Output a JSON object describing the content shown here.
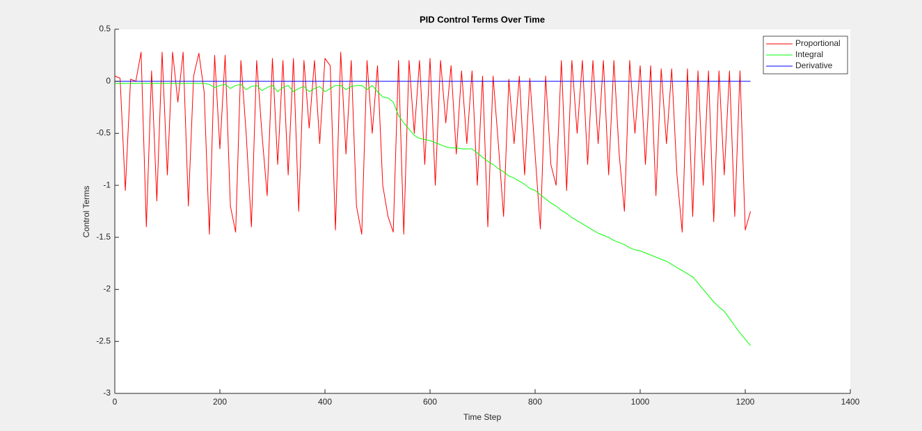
{
  "chart_data": {
    "type": "line",
    "title": "PID Control Terms Over Time",
    "xlabel": "Time Step",
    "ylabel": "Control Terms",
    "x": [
      0,
      10,
      20,
      30,
      40,
      50,
      60,
      70,
      80,
      90,
      100,
      110,
      120,
      130,
      140,
      150,
      160,
      170,
      180,
      190,
      200,
      210,
      220,
      230,
      240,
      250,
      260,
      270,
      280,
      290,
      300,
      310,
      320,
      330,
      340,
      350,
      360,
      370,
      380,
      390,
      400,
      410,
      420,
      430,
      440,
      450,
      460,
      470,
      480,
      490,
      500,
      510,
      520,
      530,
      540,
      550,
      560,
      570,
      580,
      590,
      600,
      610,
      620,
      630,
      640,
      650,
      660,
      670,
      680,
      690,
      700,
      710,
      720,
      730,
      740,
      750,
      760,
      770,
      780,
      790,
      800,
      810,
      820,
      830,
      840,
      850,
      860,
      870,
      880,
      890,
      900,
      910,
      920,
      930,
      940,
      950,
      960,
      970,
      980,
      990,
      1000,
      1010,
      1020,
      1030,
      1040,
      1050,
      1060,
      1070,
      1080,
      1090,
      1100,
      1110,
      1120,
      1130,
      1140,
      1150,
      1160,
      1170,
      1180,
      1190,
      1200,
      1210
    ],
    "series": [
      {
        "name": "Proportional",
        "color": "#ff0000",
        "values": [
          0.05,
          0.03,
          -1.05,
          0.02,
          0.0,
          0.28,
          -1.4,
          0.1,
          -1.15,
          0.28,
          -0.9,
          0.28,
          -0.2,
          0.28,
          -1.2,
          0.05,
          0.27,
          -0.1,
          -1.47,
          0.25,
          -0.65,
          0.25,
          -1.2,
          -1.45,
          0.2,
          -0.5,
          -1.4,
          0.2,
          -0.5,
          -1.1,
          0.22,
          -0.8,
          0.2,
          -0.9,
          0.22,
          -1.25,
          0.2,
          -0.45,
          0.2,
          -0.6,
          0.22,
          0.15,
          -1.43,
          0.28,
          -0.7,
          0.2,
          -1.2,
          -1.47,
          0.2,
          -0.5,
          0.15,
          -1.0,
          -1.3,
          -1.45,
          0.2,
          -1.47,
          0.2,
          -0.5,
          0.2,
          -0.8,
          0.22,
          -1.0,
          0.2,
          -0.4,
          0.15,
          -0.7,
          0.1,
          -0.6,
          0.1,
          -1.0,
          0.05,
          -1.4,
          0.05,
          -0.6,
          -1.3,
          0.02,
          -0.6,
          0.05,
          -0.9,
          0.03,
          -0.7,
          -1.42,
          0.05,
          -0.8,
          -1.0,
          0.2,
          -1.05,
          0.2,
          -0.5,
          0.2,
          -0.8,
          0.2,
          -0.6,
          0.2,
          -0.9,
          0.2,
          -0.7,
          -1.25,
          0.2,
          -0.5,
          0.15,
          -0.8,
          0.15,
          -1.1,
          0.12,
          -0.6,
          0.12,
          -0.9,
          -1.45,
          0.12,
          -1.3,
          0.1,
          -1.0,
          0.1,
          -1.35,
          0.1,
          -0.9,
          0.1,
          -1.3,
          0.1,
          -1.43,
          -1.25
        ]
      },
      {
        "name": "Integral",
        "color": "#00ff00",
        "values": [
          -0.02,
          -0.02,
          -0.02,
          -0.02,
          -0.02,
          -0.02,
          -0.02,
          -0.02,
          -0.02,
          -0.02,
          -0.02,
          -0.02,
          -0.02,
          -0.02,
          -0.02,
          -0.02,
          -0.02,
          -0.02,
          -0.03,
          -0.06,
          -0.04,
          -0.03,
          -0.07,
          -0.04,
          -0.03,
          -0.08,
          -0.05,
          -0.04,
          -0.09,
          -0.06,
          -0.04,
          -0.1,
          -0.06,
          -0.04,
          -0.1,
          -0.07,
          -0.05,
          -0.1,
          -0.07,
          -0.05,
          -0.1,
          -0.07,
          -0.04,
          -0.04,
          -0.08,
          -0.05,
          -0.04,
          -0.04,
          -0.08,
          -0.04,
          -0.1,
          -0.15,
          -0.16,
          -0.2,
          -0.33,
          -0.4,
          -0.46,
          -0.52,
          -0.55,
          -0.56,
          -0.57,
          -0.59,
          -0.61,
          -0.63,
          -0.64,
          -0.64,
          -0.65,
          -0.65,
          -0.65,
          -0.69,
          -0.73,
          -0.77,
          -0.8,
          -0.84,
          -0.87,
          -0.91,
          -0.93,
          -0.96,
          -0.99,
          -1.03,
          -1.05,
          -1.09,
          -1.13,
          -1.17,
          -1.2,
          -1.24,
          -1.27,
          -1.31,
          -1.34,
          -1.37,
          -1.4,
          -1.43,
          -1.46,
          -1.48,
          -1.5,
          -1.53,
          -1.55,
          -1.57,
          -1.6,
          -1.62,
          -1.63,
          -1.65,
          -1.67,
          -1.69,
          -1.71,
          -1.73,
          -1.76,
          -1.79,
          -1.82,
          -1.85,
          -1.88,
          -1.94,
          -2.0,
          -2.06,
          -2.12,
          -2.17,
          -2.21,
          -2.28,
          -2.35,
          -2.42,
          -2.48,
          -2.54
        ]
      },
      {
        "name": "Derivative",
        "color": "#0000ff",
        "values": [
          0,
          0,
          0,
          0,
          0,
          0,
          0,
          0,
          0,
          0,
          0,
          0,
          0,
          0,
          0,
          0,
          0,
          0,
          0,
          0,
          0,
          0,
          0,
          0,
          0,
          0,
          0,
          0,
          0,
          0,
          0,
          0,
          0,
          0,
          0,
          0,
          0,
          0,
          0,
          0,
          0,
          0,
          0,
          0,
          0,
          0,
          0,
          0,
          0,
          0,
          0,
          0,
          0,
          0,
          0,
          0,
          0,
          0,
          0,
          0,
          0,
          0,
          0,
          0,
          0,
          0,
          0,
          0,
          0,
          0,
          0,
          0,
          0,
          0,
          0,
          0,
          0,
          0,
          0,
          0,
          0,
          0,
          0,
          0,
          0,
          0,
          0,
          0,
          0,
          0,
          0,
          0,
          0,
          0,
          0,
          0,
          0,
          0,
          0,
          0,
          0,
          0,
          0,
          0,
          0,
          0,
          0,
          0,
          0,
          0,
          0,
          0,
          0,
          0,
          0,
          0,
          0,
          0,
          0,
          0,
          0,
          0
        ]
      }
    ],
    "xlim": [
      0,
      1400
    ],
    "xticks": [
      0,
      200,
      400,
      600,
      800,
      1000,
      1200,
      1400
    ],
    "ylim": [
      -3,
      0.5
    ],
    "yticks": [
      0.5,
      0,
      -0.5,
      -1,
      -1.5,
      -2,
      -2.5,
      -3
    ],
    "grid": false,
    "legend": "northeast"
  }
}
